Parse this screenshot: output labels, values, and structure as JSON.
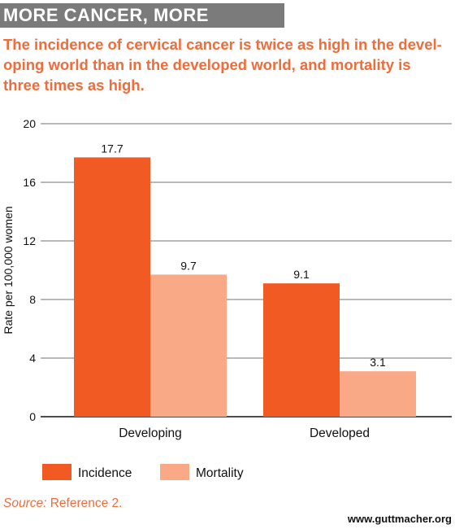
{
  "header": {
    "title": "MORE CANCER, MORE DEADLY",
    "subtitle": "The incidence of cervical cancer is twice as high in the devel-oping world than in the developed world, and mortality is three times as high."
  },
  "footer": {
    "source_label": "Source:",
    "source_text": " Reference 2.",
    "website": "www.guttmacher.org"
  },
  "chart_data": {
    "type": "bar",
    "categories": [
      "Developing",
      "Developed"
    ],
    "series": [
      {
        "name": "Incidence",
        "values": [
          17.7,
          9.1
        ],
        "color": "#f15a22"
      },
      {
        "name": "Mortality",
        "values": [
          9.7,
          3.1
        ],
        "color": "#f9a985"
      }
    ],
    "ylabel": "Rate per 100,000 women",
    "xlabel": "",
    "ylim": [
      0,
      20
    ],
    "yticks": [
      0,
      4,
      8,
      12,
      16,
      20
    ],
    "grid": true,
    "legend": "bottom-left",
    "data_labels": [
      "17.7",
      "9.7",
      "9.1",
      "3.1"
    ]
  }
}
